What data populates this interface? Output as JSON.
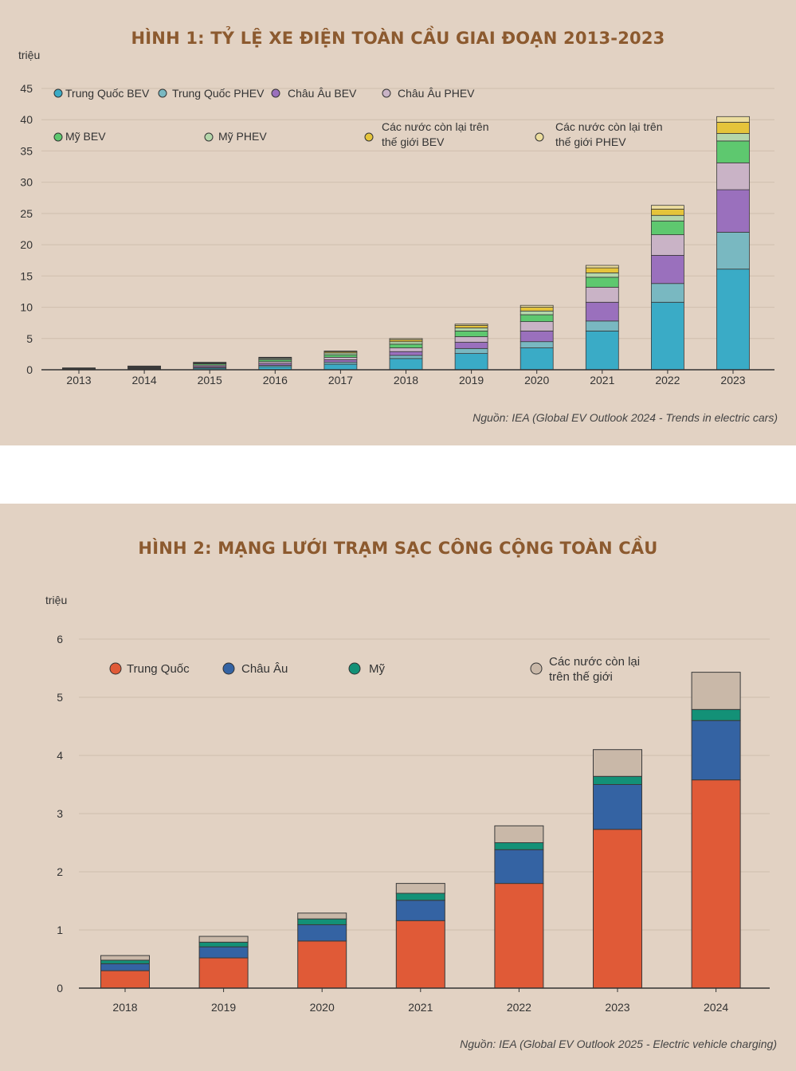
{
  "chart_data": [
    {
      "type": "bar",
      "stacked": true,
      "title": "HÌNH 1: TỶ LỆ XE ĐIỆN TOÀN CẦU GIAI ĐOẠN 2013-2023",
      "ylabel": "triệu",
      "ylim": [
        0,
        45
      ],
      "yticks": [
        "0",
        "5",
        "10",
        "15",
        "20",
        "25",
        "30",
        "35",
        "40",
        "45"
      ],
      "grid": true,
      "legend_position": "top",
      "categories": [
        "2013",
        "2014",
        "2015",
        "2016",
        "2017",
        "2018",
        "2019",
        "2020",
        "2021",
        "2022",
        "2023"
      ],
      "series": [
        {
          "name": "Trung Quốc BEV",
          "color": "#3aabc6",
          "values": [
            0.05,
            0.1,
            0.25,
            0.5,
            0.9,
            1.8,
            2.6,
            3.5,
            6.2,
            10.8,
            16.1
          ]
        },
        {
          "name": "Trung Quốc PHEV",
          "color": "#79b8c1",
          "values": [
            0.02,
            0.05,
            0.1,
            0.2,
            0.3,
            0.5,
            0.8,
            1.0,
            1.6,
            3.0,
            5.9
          ]
        },
        {
          "name": "Châu Âu BEV",
          "color": "#9a70bd",
          "values": [
            0.05,
            0.1,
            0.2,
            0.3,
            0.4,
            0.6,
            1.0,
            1.7,
            3.0,
            4.5,
            6.8
          ]
        },
        {
          "name": "Châu Âu PHEV",
          "color": "#c9b3c6",
          "values": [
            0.04,
            0.1,
            0.2,
            0.3,
            0.4,
            0.6,
            0.9,
            1.5,
            2.4,
            3.3,
            4.3
          ]
        },
        {
          "name": "Mỹ BEV",
          "color": "#5ec86f",
          "values": [
            0.06,
            0.1,
            0.2,
            0.3,
            0.4,
            0.6,
            0.9,
            1.1,
            1.6,
            2.2,
            3.5
          ]
        },
        {
          "name": "Mỹ PHEV",
          "color": "#b4d6aa",
          "values": [
            0.04,
            0.07,
            0.1,
            0.2,
            0.3,
            0.4,
            0.5,
            0.6,
            0.7,
            0.9,
            1.2
          ]
        },
        {
          "name": "Các nước còn lại trên thế giới BEV",
          "color": "#e5c43b",
          "values": [
            0.02,
            0.05,
            0.08,
            0.1,
            0.2,
            0.3,
            0.4,
            0.6,
            0.8,
            1.0,
            1.8
          ]
        },
        {
          "name": "Các nước còn lại trên thế giới PHEV",
          "color": "#ecdd9d",
          "values": [
            0.02,
            0.03,
            0.07,
            0.1,
            0.1,
            0.2,
            0.2,
            0.3,
            0.4,
            0.6,
            0.9
          ]
        }
      ],
      "source": "Nguồn: IEA (Global EV Outlook 2024 - Trends in electric cars)"
    },
    {
      "type": "bar",
      "stacked": true,
      "title": "HÌNH 2: MẠNG LƯỚI TRẠM SẠC CÔNG CỘNG TOÀN CẦU",
      "ylabel": "triệu",
      "ylim": [
        0,
        6
      ],
      "yticks": [
        "0",
        "1",
        "2",
        "3",
        "4",
        "5",
        "6"
      ],
      "grid": true,
      "legend_position": "top",
      "categories": [
        "2018",
        "2019",
        "2020",
        "2021",
        "2022",
        "2023",
        "2024"
      ],
      "series": [
        {
          "name": "Trung Quốc",
          "color": "#e05a37",
          "values": [
            0.3,
            0.52,
            0.81,
            1.16,
            1.8,
            2.73,
            3.58
          ]
        },
        {
          "name": "Châu Âu",
          "color": "#3463a3",
          "values": [
            0.12,
            0.19,
            0.28,
            0.35,
            0.58,
            0.77,
            1.02
          ]
        },
        {
          "name": "Mỹ",
          "color": "#139177",
          "values": [
            0.06,
            0.08,
            0.1,
            0.12,
            0.12,
            0.14,
            0.19
          ]
        },
        {
          "name": "Các nước còn lại trên thế giới",
          "color": "#c9b8a8",
          "values": [
            0.08,
            0.1,
            0.1,
            0.17,
            0.29,
            0.46,
            0.64
          ]
        }
      ],
      "source": "Nguồn: IEA (Global EV Outlook 2025 - Electric vehicle charging)"
    }
  ]
}
